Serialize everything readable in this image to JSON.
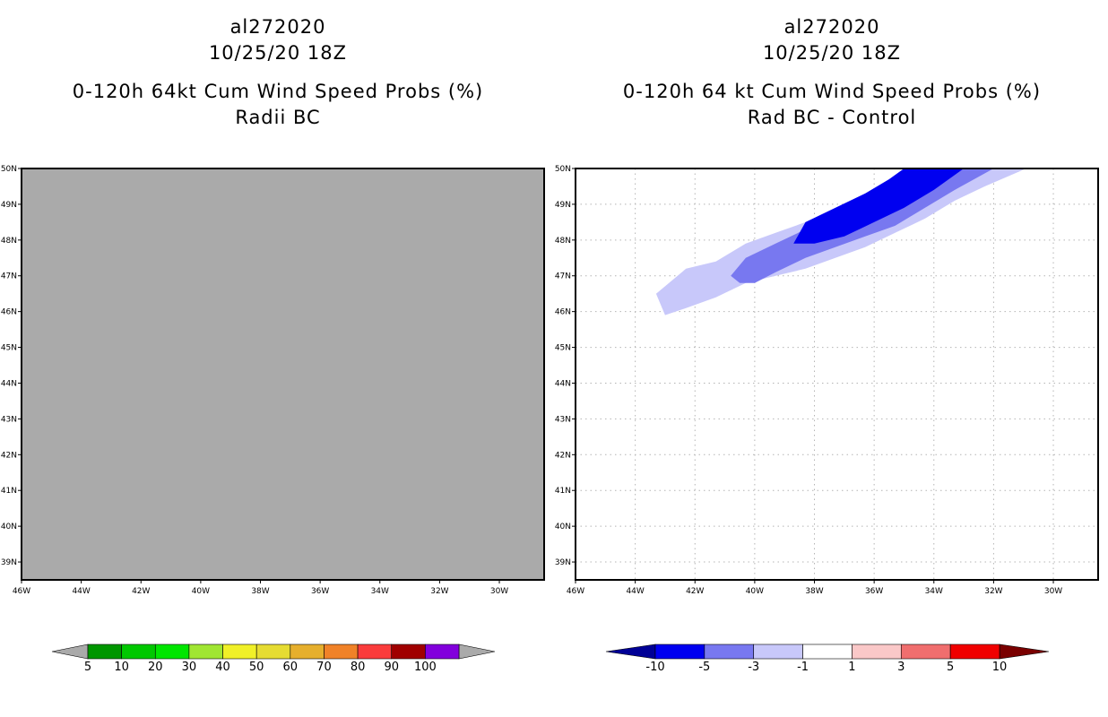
{
  "chart_data": [
    {
      "type": "heatmap",
      "storm_id": "al272020",
      "datetime": "10/25/20 18Z",
      "title": "0-120h 64kt Cum Wind Speed Probs (%)",
      "subtitle": "Radii BC",
      "field": "uniform (no probability shaded)",
      "background_color": "#aaaaaa",
      "x_ticks": [
        "46W",
        "44W",
        "42W",
        "40W",
        "38W",
        "36W",
        "34W",
        "32W",
        "30W"
      ],
      "y_ticks": [
        "50N",
        "49N",
        "48N",
        "47N",
        "46N",
        "45N",
        "44N",
        "43N",
        "42N",
        "41N",
        "40N",
        "39N"
      ],
      "lon_range": [
        -46,
        -28.5
      ],
      "lat_range": [
        38.5,
        50
      ],
      "grid": false,
      "colorbar": {
        "labels": [
          "5",
          "10",
          "20",
          "30",
          "40",
          "50",
          "60",
          "70",
          "80",
          "90",
          "100"
        ],
        "colors": [
          "#009600",
          "#00c800",
          "#00e600",
          "#a0e632",
          "#f0f028",
          "#e6dc32",
          "#e6af2d",
          "#f08228",
          "#fa3c3c",
          "#a00000",
          "#8200dc"
        ],
        "end_colors": [
          "#aaaaaa",
          "#aaaaaa"
        ]
      }
    },
    {
      "type": "heatmap",
      "storm_id": "al272020",
      "datetime": "10/25/20 18Z",
      "title": "0-120h 64 kt Cum Wind Speed Probs (%)",
      "subtitle": "Rad BC - Control",
      "x_ticks": [
        "46W",
        "44W",
        "42W",
        "40W",
        "38W",
        "36W",
        "34W",
        "32W",
        "30W"
      ],
      "y_ticks": [
        "50N",
        "49N",
        "48N",
        "47N",
        "46N",
        "45N",
        "44N",
        "43N",
        "42N",
        "41N",
        "40N",
        "39N"
      ],
      "lon_range": [
        -46,
        -28.5
      ],
      "lat_range": [
        38.5,
        50
      ],
      "grid": true,
      "contours": [
        {
          "level": "-1 to -3",
          "color": "#c8c8fa",
          "points": [
            [
              -43.3,
              46.5
            ],
            [
              -42.3,
              47.2
            ],
            [
              -41.3,
              47.4
            ],
            [
              -40.3,
              47.9
            ],
            [
              -39.3,
              48.2
            ],
            [
              -38.3,
              48.5
            ],
            [
              -37.3,
              48.9
            ],
            [
              -36.3,
              49.3
            ],
            [
              -35.0,
              49.8
            ],
            [
              -34.5,
              50.0
            ],
            [
              -30.9,
              50.0
            ],
            [
              -32.3,
              49.5
            ],
            [
              -33.3,
              49.1
            ],
            [
              -34.3,
              48.6
            ],
            [
              -35.3,
              48.2
            ],
            [
              -36.3,
              47.8
            ],
            [
              -37.3,
              47.5
            ],
            [
              -38.3,
              47.2
            ],
            [
              -39.3,
              47.0
            ],
            [
              -40.3,
              46.8
            ],
            [
              -41.3,
              46.4
            ],
            [
              -42.3,
              46.1
            ],
            [
              -43.0,
              45.9
            ]
          ]
        },
        {
          "level": "-3 to -5",
          "color": "#7878f0",
          "points": [
            [
              -40.8,
              47.0
            ],
            [
              -40.3,
              47.5
            ],
            [
              -39.3,
              47.9
            ],
            [
              -38.3,
              48.3
            ],
            [
              -37.3,
              48.7
            ],
            [
              -36.3,
              49.1
            ],
            [
              -35.3,
              49.5
            ],
            [
              -34.0,
              50.0
            ],
            [
              -32.0,
              50.0
            ],
            [
              -33.3,
              49.4
            ],
            [
              -34.3,
              48.9
            ],
            [
              -35.3,
              48.4
            ],
            [
              -36.3,
              48.1
            ],
            [
              -37.3,
              47.8
            ],
            [
              -38.3,
              47.5
            ],
            [
              -39.3,
              47.1
            ],
            [
              -40.0,
              46.8
            ],
            [
              -40.5,
              46.8
            ]
          ]
        },
        {
          "level": "-5 to -10",
          "color": "#0000f0",
          "points": [
            [
              -38.3,
              48.5
            ],
            [
              -37.3,
              48.9
            ],
            [
              -36.3,
              49.3
            ],
            [
              -35.5,
              49.7
            ],
            [
              -35.0,
              50.0
            ],
            [
              -33.0,
              50.0
            ],
            [
              -34.0,
              49.4
            ],
            [
              -35.0,
              48.9
            ],
            [
              -36.0,
              48.5
            ],
            [
              -37.0,
              48.1
            ],
            [
              -38.0,
              47.9
            ],
            [
              -38.7,
              47.9
            ]
          ]
        }
      ],
      "colorbar": {
        "labels": [
          "-10",
          "-5",
          "-3",
          "-1",
          "1",
          "3",
          "5",
          "10"
        ],
        "colors": [
          "#0000f0",
          "#7878f0",
          "#c8c8fa",
          "#ffffff",
          "#fac8c8",
          "#f06e6e",
          "#f00000"
        ],
        "end_colors": [
          "#000096",
          "#7a0000"
        ]
      }
    }
  ]
}
